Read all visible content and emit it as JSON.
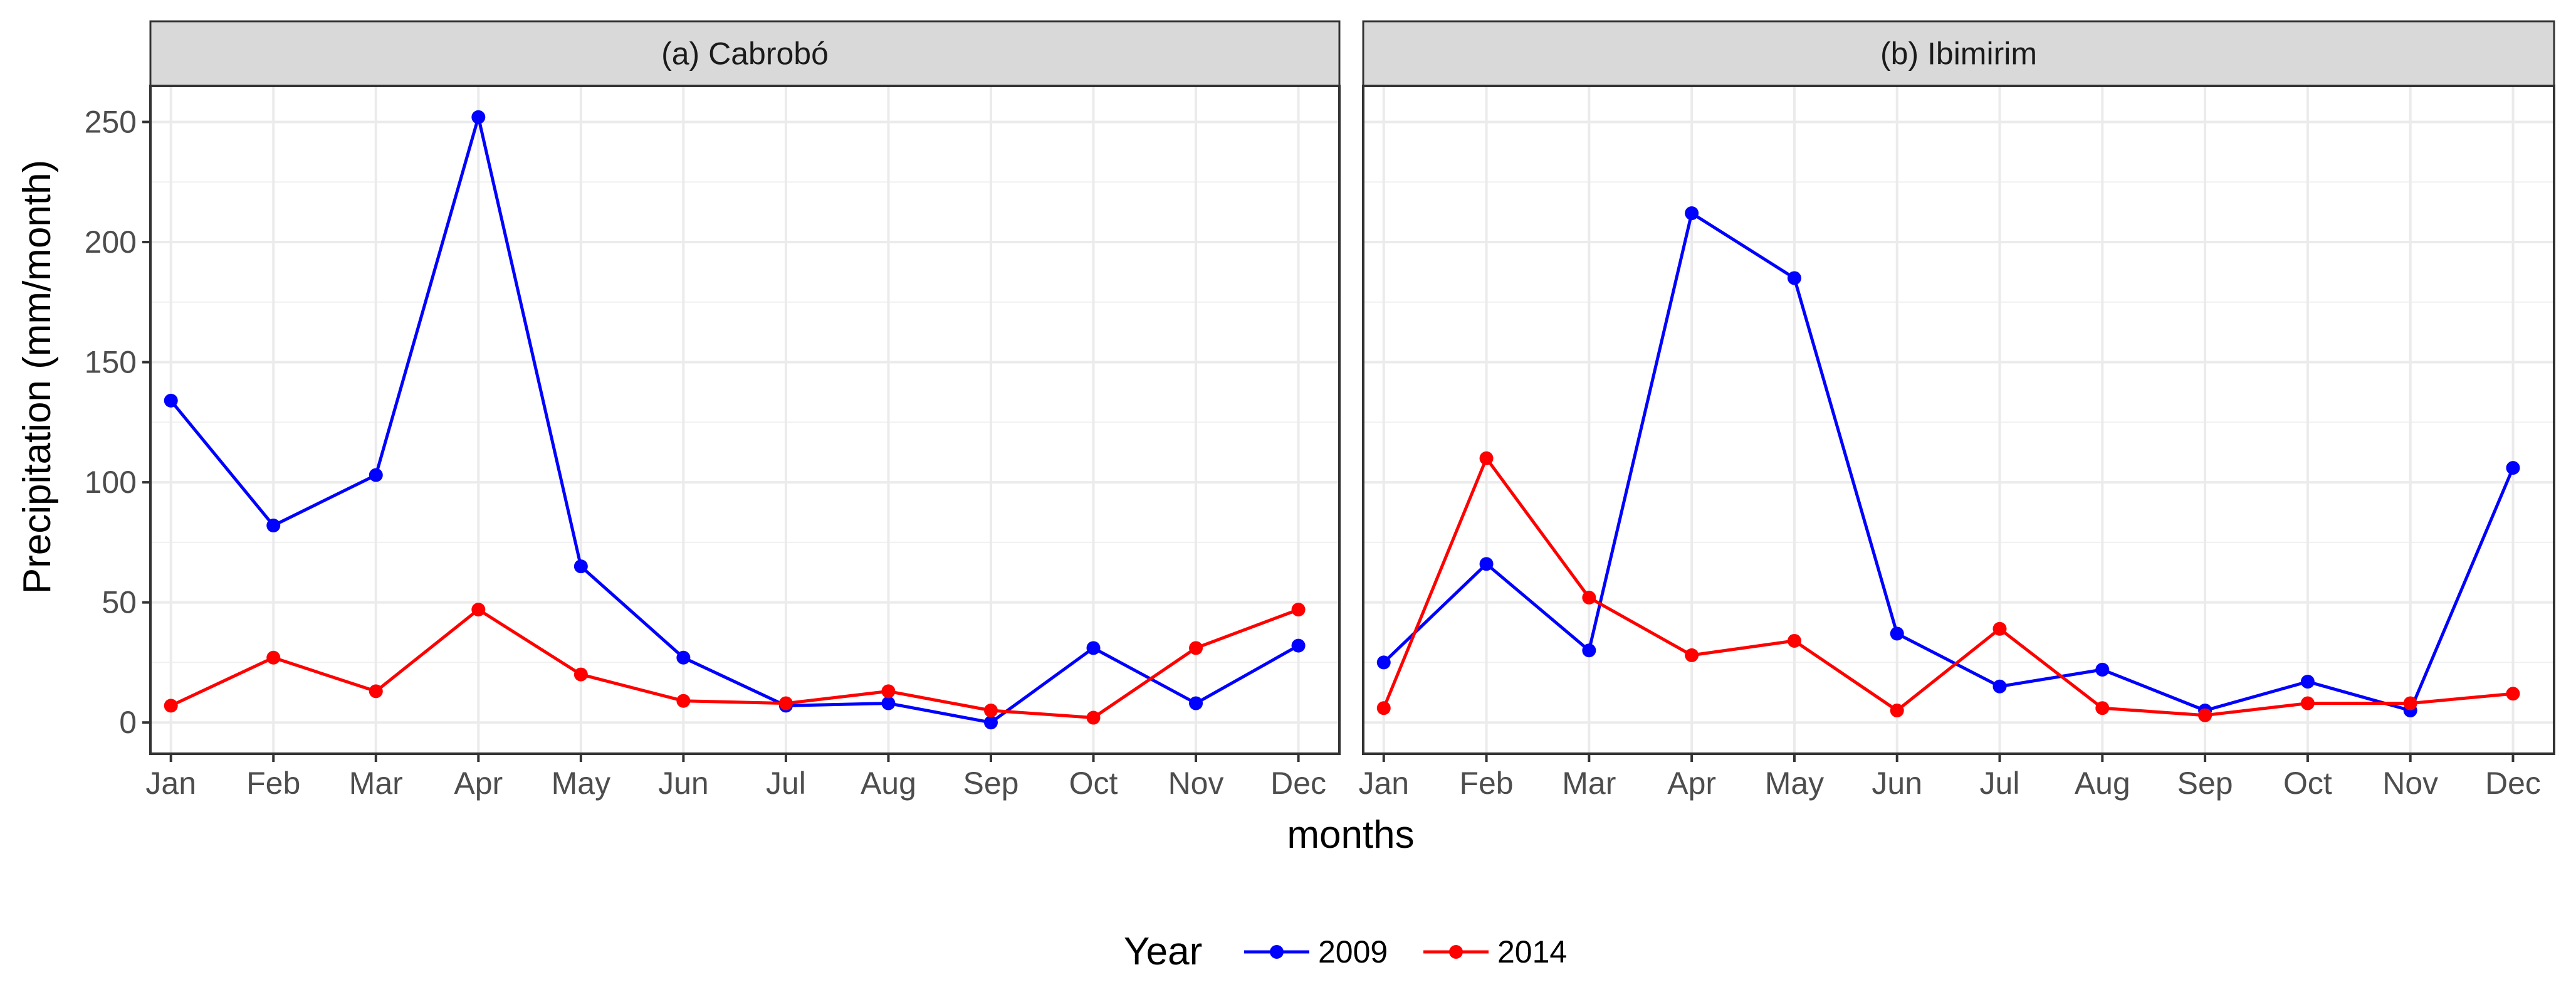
{
  "chart_data": [
    {
      "type": "line",
      "title": "(a) Cabrobó",
      "categories": [
        "Jan",
        "Feb",
        "Mar",
        "Apr",
        "May",
        "Jun",
        "Jul",
        "Aug",
        "Sep",
        "Oct",
        "Nov",
        "Dec"
      ],
      "series": [
        {
          "name": "2009",
          "color": "#0000ff",
          "values": [
            134,
            82,
            103,
            252,
            65,
            27,
            7,
            8,
            0,
            31,
            8,
            32
          ]
        },
        {
          "name": "2014",
          "color": "#ff0000",
          "values": [
            7,
            27,
            13,
            47,
            20,
            9,
            8,
            13,
            5,
            2,
            31,
            47
          ]
        }
      ],
      "yticks": [
        0,
        50,
        100,
        150,
        200,
        250
      ],
      "ylim": [
        -13,
        265
      ],
      "grid": true
    },
    {
      "type": "line",
      "title": "(b) Ibimirim",
      "categories": [
        "Jan",
        "Feb",
        "Mar",
        "Apr",
        "May",
        "Jun",
        "Jul",
        "Aug",
        "Sep",
        "Oct",
        "Nov",
        "Dec"
      ],
      "series": [
        {
          "name": "2009",
          "color": "#0000ff",
          "values": [
            25,
            66,
            30,
            212,
            185,
            37,
            15,
            22,
            5,
            17,
            5,
            106
          ]
        },
        {
          "name": "2014",
          "color": "#ff0000",
          "values": [
            6,
            110,
            52,
            28,
            34,
            5,
            39,
            6,
            3,
            8,
            8,
            12
          ]
        }
      ],
      "yticks": [
        0,
        50,
        100,
        150,
        200,
        250
      ],
      "ylim": [
        -13,
        265
      ],
      "grid": true
    }
  ],
  "xlabel": "months",
  "ylabel": "Precipitation (mm/month)",
  "legend": {
    "title": "Year",
    "position": "bottom",
    "entries": [
      {
        "label": "2009",
        "color": "#0000ff"
      },
      {
        "label": "2014",
        "color": "#ff0000"
      }
    ]
  }
}
